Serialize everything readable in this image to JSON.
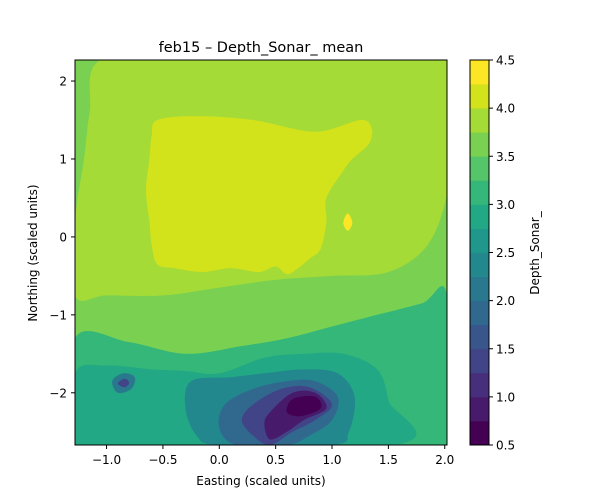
{
  "chart_data": {
    "type": "heatmap",
    "subtype": "filled-contour",
    "title": "feb15 – Depth_Sonar_ mean",
    "xlabel": "Easting (scaled units)",
    "ylabel": "Northing (scaled units)",
    "xlim": [
      -1.28,
      2.02
    ],
    "ylim": [
      -2.67,
      2.27
    ],
    "xticks": [
      -1.0,
      -0.5,
      0.0,
      0.5,
      1.0,
      1.5,
      2.0
    ],
    "xtick_labels": [
      "−1.0",
      "−0.5",
      "0.0",
      "0.5",
      "1.0",
      "1.5",
      "2.0"
    ],
    "yticks": [
      2,
      1,
      0,
      -1,
      -2
    ],
    "ytick_labels": [
      "2",
      "1",
      "0",
      "−1",
      "−2"
    ],
    "colorbar": {
      "label": "Depth_Sonar_",
      "range": [
        0.5,
        4.5
      ],
      "levels": [
        0.5,
        0.75,
        1.0,
        1.25,
        1.5,
        1.75,
        2.0,
        2.25,
        2.5,
        2.75,
        3.0,
        3.25,
        3.5,
        3.75,
        4.0,
        4.25,
        4.5
      ],
      "ticks": [
        4.5,
        4.0,
        3.5,
        3.0,
        2.5,
        2.0,
        1.5,
        1.0,
        0.5
      ],
      "tick_labels": [
        "4.5",
        "4.0",
        "3.5",
        "3.0",
        "2.5",
        "2.0",
        "1.5",
        "1.0",
        "0.5"
      ],
      "colormap": "viridis",
      "band_colors": [
        "#440154",
        "#481a6c",
        "#472f7d",
        "#414487",
        "#39568c",
        "#31688e",
        "#2a788e",
        "#23888e",
        "#1f988b",
        "#22a884",
        "#35b779",
        "#54c568",
        "#7ad151",
        "#a5db36",
        "#d2e21b",
        "#fde725"
      ]
    },
    "field": {
      "background": 3.55,
      "regions": [
        {
          "name": "north-basin-outer",
          "value": 3.8,
          "points": [
            [
              -1.05,
              2.27
            ],
            [
              -0.2,
              2.27
            ],
            [
              0.6,
              2.27
            ],
            [
              1.25,
              2.27
            ],
            [
              1.6,
              2.27
            ],
            [
              2.02,
              2.27
            ],
            [
              2.02,
              1.1
            ],
            [
              2.02,
              0.55
            ],
            [
              1.85,
              -0.1
            ],
            [
              1.5,
              -0.45
            ],
            [
              1.0,
              -0.5
            ],
            [
              0.5,
              -0.55
            ],
            [
              0.0,
              -0.65
            ],
            [
              -0.5,
              -0.75
            ],
            [
              -1.0,
              -0.75
            ],
            [
              -1.28,
              -0.75
            ],
            [
              -1.28,
              0.2
            ],
            [
              -1.2,
              1.0
            ],
            [
              -1.15,
              1.6
            ]
          ]
        },
        {
          "name": "north-basin-inner",
          "value": 4.1,
          "points": [
            [
              -0.55,
              1.5
            ],
            [
              -0.2,
              1.55
            ],
            [
              0.3,
              1.5
            ],
            [
              0.85,
              1.35
            ],
            [
              1.25,
              1.5
            ],
            [
              1.35,
              1.4
            ],
            [
              1.33,
              1.2
            ],
            [
              1.18,
              1.0
            ],
            [
              1.1,
              0.85
            ],
            [
              0.95,
              0.5
            ],
            [
              0.95,
              0.2
            ],
            [
              0.9,
              -0.15
            ],
            [
              0.8,
              -0.28
            ],
            [
              0.7,
              -0.4
            ],
            [
              0.6,
              -0.48
            ],
            [
              0.5,
              -0.38
            ],
            [
              0.35,
              -0.45
            ],
            [
              0.1,
              -0.4
            ],
            [
              -0.15,
              -0.45
            ],
            [
              -0.4,
              -0.4
            ],
            [
              -0.55,
              -0.35
            ],
            [
              -0.6,
              -0.1
            ],
            [
              -0.62,
              0.2
            ],
            [
              -0.65,
              0.6
            ],
            [
              -0.62,
              1.0
            ],
            [
              -0.6,
              1.3
            ]
          ]
        },
        {
          "name": "south-shelf-outer",
          "value": 3.2,
          "points": [
            [
              -1.28,
              -1.3
            ],
            [
              -0.8,
              -1.35
            ],
            [
              -0.3,
              -1.5
            ],
            [
              0.2,
              -1.4
            ],
            [
              0.6,
              -1.3
            ],
            [
              1.0,
              -1.15
            ],
            [
              1.4,
              -1.0
            ],
            [
              1.8,
              -0.85
            ],
            [
              2.02,
              -0.75
            ],
            [
              2.02,
              -2.67
            ],
            [
              -1.28,
              -2.67
            ]
          ]
        },
        {
          "name": "south-shelf-inner",
          "value": 2.8,
          "points": [
            [
              -1.28,
              -1.75
            ],
            [
              -1.0,
              -1.65
            ],
            [
              -0.6,
              -1.7
            ],
            [
              -0.3,
              -1.72
            ],
            [
              0.0,
              -1.75
            ],
            [
              0.4,
              -1.55
            ],
            [
              0.75,
              -1.5
            ],
            [
              1.1,
              -1.5
            ],
            [
              1.4,
              -1.7
            ],
            [
              1.5,
              -2.1
            ],
            [
              1.55,
              -2.67
            ],
            [
              -1.28,
              -2.67
            ]
          ]
        },
        {
          "name": "central-channel",
          "value": 2.4,
          "points": [
            [
              -0.25,
              -1.85
            ],
            [
              0.1,
              -1.8
            ],
            [
              0.4,
              -1.75
            ],
            [
              0.75,
              -1.7
            ],
            [
              1.05,
              -1.75
            ],
            [
              1.2,
              -2.05
            ],
            [
              1.15,
              -2.5
            ],
            [
              1.0,
              -2.67
            ],
            [
              0.0,
              -2.67
            ],
            [
              -0.2,
              -2.55
            ],
            [
              -0.3,
              -2.2
            ]
          ]
        },
        {
          "name": "central-deep-1",
          "value": 1.9,
          "points": [
            [
              0.05,
              -2.15
            ],
            [
              0.3,
              -1.95
            ],
            [
              0.6,
              -1.85
            ],
            [
              0.85,
              -1.85
            ],
            [
              1.05,
              -2.05
            ],
            [
              1.0,
              -2.35
            ],
            [
              0.8,
              -2.55
            ],
            [
              0.6,
              -2.67
            ],
            [
              0.15,
              -2.67
            ],
            [
              0.0,
              -2.45
            ]
          ]
        },
        {
          "name": "central-deep-2",
          "value": 1.4,
          "points": [
            [
              0.3,
              -2.15
            ],
            [
              0.55,
              -1.95
            ],
            [
              0.8,
              -1.93
            ],
            [
              1.0,
              -2.15
            ],
            [
              0.85,
              -2.35
            ],
            [
              0.65,
              -2.5
            ],
            [
              0.45,
              -2.67
            ],
            [
              0.3,
              -2.55
            ],
            [
              0.2,
              -2.35
            ]
          ]
        },
        {
          "name": "central-deep-3",
          "value": 0.9,
          "points": [
            [
              0.45,
              -2.25
            ],
            [
              0.65,
              -2.0
            ],
            [
              0.85,
              -2.0
            ],
            [
              0.95,
              -2.2
            ],
            [
              0.75,
              -2.35
            ],
            [
              0.6,
              -2.5
            ],
            [
              0.45,
              -2.6
            ],
            [
              0.4,
              -2.4
            ]
          ]
        },
        {
          "name": "central-deep-4",
          "value": 0.6,
          "points": [
            [
              0.65,
              -2.08
            ],
            [
              0.85,
              -2.05
            ],
            [
              0.9,
              -2.2
            ],
            [
              0.72,
              -2.3
            ],
            [
              0.6,
              -2.25
            ]
          ]
        },
        {
          "name": "west-pocket-1",
          "value": 2.2,
          "points": [
            [
              -0.95,
              -1.85
            ],
            [
              -0.85,
              -1.75
            ],
            [
              -0.75,
              -1.8
            ],
            [
              -0.78,
              -1.95
            ],
            [
              -0.9,
              -2.0
            ]
          ]
        },
        {
          "name": "west-pocket-2",
          "value": 1.3,
          "points": [
            [
              -0.9,
              -1.88
            ],
            [
              -0.84,
              -1.82
            ],
            [
              -0.8,
              -1.87
            ],
            [
              -0.84,
              -1.93
            ]
          ]
        },
        {
          "name": "east-spike",
          "value": 4.3,
          "points": [
            [
              1.1,
              0.18
            ],
            [
              1.14,
              0.3
            ],
            [
              1.18,
              0.18
            ],
            [
              1.14,
              0.08
            ]
          ]
        }
      ]
    }
  }
}
